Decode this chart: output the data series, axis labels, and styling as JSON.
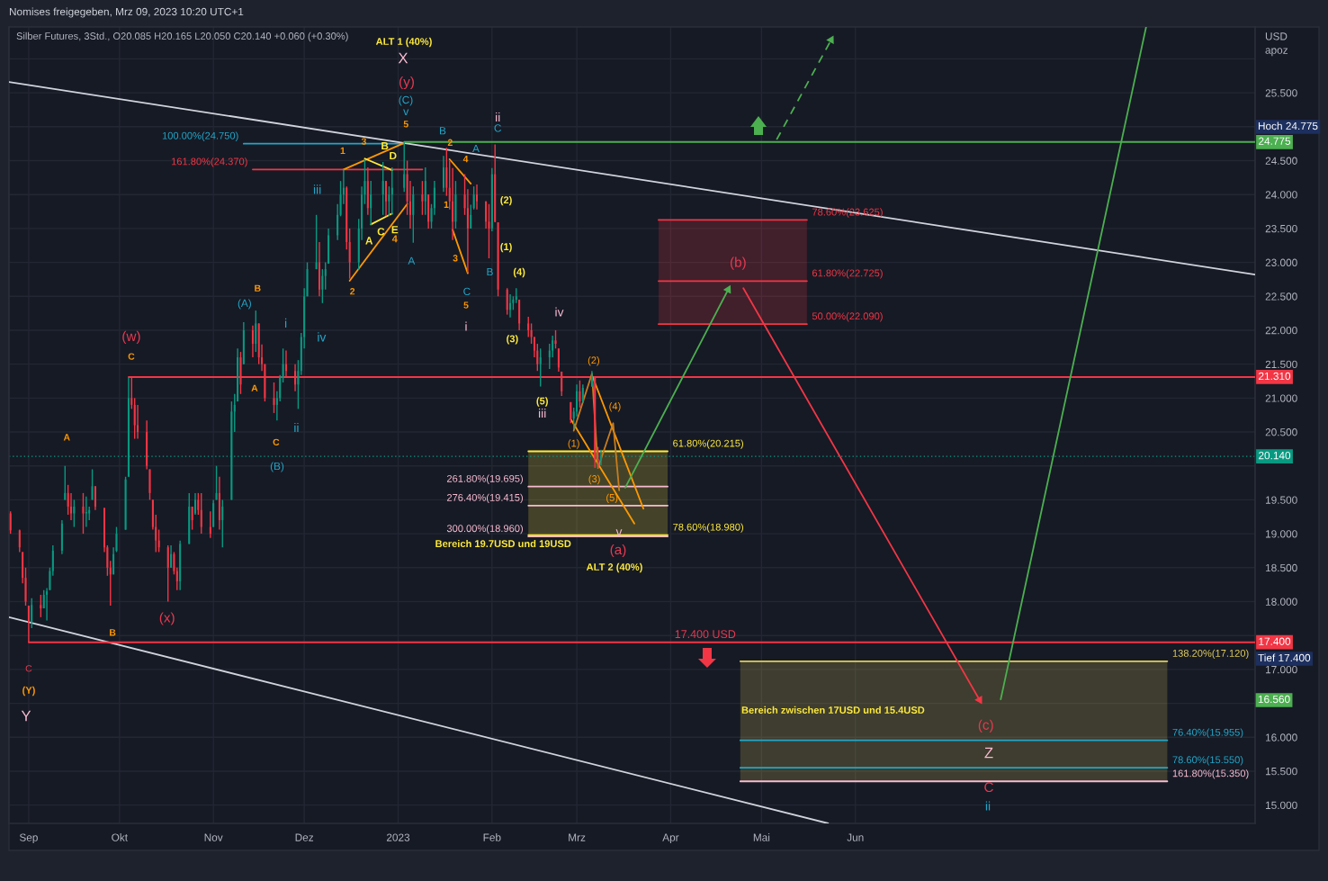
{
  "chart_data": {
    "type": "candlestick",
    "title": "Nomises freigegeben, Mrz 09, 2023 10:20 UTC+1",
    "subtitle": "Silber Futures, 3Std., O20.085 H20.165 L20.050 C20.140 +0.060 (+0.30%)",
    "ylabel": "USD\napoz",
    "x": [
      "2022-08-26",
      "2022-08-29",
      "2022-08-30",
      "2022-08-31",
      "2022-09-01",
      "2022-09-02",
      "2022-09-05",
      "2022-09-06",
      "2022-09-07",
      "2022-09-08",
      "2022-09-09",
      "2022-09-12",
      "2022-09-13",
      "2022-09-14",
      "2022-09-15",
      "2022-09-16",
      "2022-09-19",
      "2022-09-20",
      "2022-09-21",
      "2022-09-22",
      "2022-09-23",
      "2022-09-26",
      "2022-09-27",
      "2022-09-28",
      "2022-09-29",
      "2022-09-30",
      "2022-10-03",
      "2022-10-04",
      "2022-10-05",
      "2022-10-06",
      "2022-10-07",
      "2022-10-10",
      "2022-10-11",
      "2022-10-12",
      "2022-10-13",
      "2022-10-14",
      "2022-10-17",
      "2022-10-18",
      "2022-10-19",
      "2022-10-20",
      "2022-10-21",
      "2022-10-24",
      "2022-10-25",
      "2022-10-26",
      "2022-10-27",
      "2022-10-28",
      "2022-10-31",
      "2022-11-01",
      "2022-11-02",
      "2022-11-03",
      "2022-11-04",
      "2022-11-07",
      "2022-11-08",
      "2022-11-09",
      "2022-11-10",
      "2022-11-11",
      "2022-11-14",
      "2022-11-15",
      "2022-11-16",
      "2022-11-17",
      "2022-11-18",
      "2022-11-21",
      "2022-11-22",
      "2022-11-23",
      "2022-11-24",
      "2022-11-25",
      "2022-11-28",
      "2022-11-29",
      "2022-11-30",
      "2022-12-01",
      "2022-12-02",
      "2022-12-05",
      "2022-12-06",
      "2022-12-07",
      "2022-12-08",
      "2022-12-09",
      "2022-12-12",
      "2022-12-13",
      "2022-12-14",
      "2022-12-15",
      "2022-12-16",
      "2022-12-19",
      "2022-12-20",
      "2022-12-21",
      "2022-12-22",
      "2022-12-23",
      "2022-12-27",
      "2022-12-28",
      "2022-12-29",
      "2022-12-30",
      "2023-01-03",
      "2023-01-04",
      "2023-01-05",
      "2023-01-06",
      "2023-01-09",
      "2023-01-10",
      "2023-01-11",
      "2023-01-12",
      "2023-01-13",
      "2023-01-16",
      "2023-01-17",
      "2023-01-18",
      "2023-01-19",
      "2023-01-20",
      "2023-01-23",
      "2023-01-24",
      "2023-01-25",
      "2023-01-26",
      "2023-01-27",
      "2023-01-30",
      "2023-01-31",
      "2023-02-01",
      "2023-02-02",
      "2023-02-03",
      "2023-02-06",
      "2023-02-07",
      "2023-02-08",
      "2023-02-09",
      "2023-02-10",
      "2023-02-13",
      "2023-02-14",
      "2023-02-15",
      "2023-02-16",
      "2023-02-17",
      "2023-02-20",
      "2023-02-21",
      "2023-02-22",
      "2023-02-23",
      "2023-02-24",
      "2023-02-27",
      "2023-02-28",
      "2023-03-01",
      "2023-03-02",
      "2023-03-03",
      "2023-03-06",
      "2023-03-07",
      "2023-03-08",
      "2023-03-09"
    ],
    "ohlc": [
      [
        19.3,
        19.33,
        19.0,
        19.05
      ],
      [
        19.05,
        19.06,
        18.73,
        18.8
      ],
      [
        18.73,
        18.73,
        18.27,
        18.35
      ],
      [
        18.35,
        18.5,
        17.94,
        18.0
      ],
      [
        17.94,
        17.94,
        17.4,
        17.7
      ],
      [
        17.7,
        18.05,
        17.61,
        17.95
      ],
      [
        17.95,
        18.1,
        17.77,
        17.9
      ],
      [
        17.9,
        18.17,
        17.9,
        18.1
      ],
      [
        18.1,
        18.2,
        17.72,
        18.15
      ],
      [
        18.17,
        18.5,
        18.17,
        18.45
      ],
      [
        18.45,
        18.83,
        18.38,
        18.75
      ],
      [
        18.75,
        19.2,
        18.7,
        19.15
      ],
      [
        19.5,
        20.0,
        19.5,
        19.6
      ],
      [
        19.6,
        19.72,
        19.28,
        19.4
      ],
      [
        19.4,
        19.6,
        19.2,
        19.3
      ],
      [
        19.3,
        19.5,
        19.1,
        19.4
      ],
      [
        19.4,
        19.6,
        19.0,
        19.3
      ],
      [
        19.3,
        19.55,
        19.1,
        19.32
      ],
      [
        19.3,
        19.4,
        19.2,
        19.35
      ],
      [
        19.5,
        19.95,
        19.5,
        19.7
      ],
      [
        19.7,
        19.7,
        19.35,
        19.4
      ],
      [
        19.38,
        19.38,
        18.73,
        18.8
      ],
      [
        18.8,
        18.83,
        18.38,
        18.5
      ],
      [
        18.5,
        18.6,
        17.94,
        18.4
      ],
      [
        18.4,
        18.8,
        18.4,
        18.7
      ],
      [
        18.75,
        19.1,
        18.73,
        19.0
      ],
      [
        19.06,
        19.84,
        19.06,
        19.8
      ],
      [
        19.84,
        21.31,
        19.84,
        21.0
      ],
      [
        21.0,
        21.3,
        20.84,
        20.9
      ],
      [
        20.9,
        21.0,
        20.4,
        20.6
      ],
      [
        20.6,
        20.9,
        20.4,
        20.5
      ],
      [
        20.5,
        20.67,
        19.95,
        20.0
      ],
      [
        19.95,
        19.95,
        19.5,
        19.6
      ],
      [
        19.5,
        19.5,
        19.06,
        19.1
      ],
      [
        19.1,
        19.28,
        18.73,
        18.9
      ],
      [
        18.9,
        19.06,
        18.73,
        18.8
      ],
      [
        18.8,
        18.83,
        18.0,
        18.5
      ],
      [
        18.5,
        18.83,
        18.5,
        18.7
      ],
      [
        18.7,
        18.73,
        18.4,
        18.45
      ],
      [
        18.45,
        18.5,
        18.17,
        18.3
      ],
      [
        18.3,
        18.9,
        18.17,
        18.85
      ],
      [
        18.85,
        19.6,
        18.85,
        19.4
      ],
      [
        19.4,
        19.4,
        19.06,
        19.2
      ],
      [
        19.3,
        19.6,
        19.28,
        19.5
      ],
      [
        19.5,
        19.6,
        19.28,
        19.35
      ],
      [
        19.35,
        19.6,
        19.0,
        19.1
      ],
      [
        19.1,
        19.33,
        18.94,
        19.0
      ],
      [
        19.1,
        19.5,
        19.1,
        19.45
      ],
      [
        19.5,
        20.0,
        19.5,
        19.6
      ],
      [
        19.6,
        19.84,
        19.06,
        19.2
      ],
      [
        19.2,
        19.5,
        18.8,
        19.4
      ],
      [
        19.5,
        20.95,
        19.5,
        20.8
      ],
      [
        20.8,
        21.06,
        20.5,
        20.9
      ],
      [
        20.95,
        21.73,
        20.95,
        21.6
      ],
      [
        21.6,
        21.68,
        21.06,
        21.2
      ],
      [
        21.5,
        22.12,
        21.5,
        22.0
      ],
      [
        22.0,
        22.07,
        21.6,
        21.8
      ],
      [
        21.8,
        22.29,
        21.68,
        22.1
      ],
      [
        22.1,
        22.1,
        21.5,
        21.6
      ],
      [
        21.6,
        21.79,
        21.4,
        21.5
      ],
      [
        21.5,
        21.5,
        20.95,
        21.0
      ],
      [
        21.0,
        21.23,
        20.78,
        20.9
      ],
      [
        20.9,
        21.1,
        20.67,
        21.0
      ],
      [
        21.0,
        21.34,
        20.95,
        21.3
      ],
      [
        21.3,
        21.73,
        21.23,
        21.5
      ],
      [
        21.5,
        21.7,
        21.3,
        21.4
      ],
      [
        21.4,
        21.5,
        21.1,
        21.2
      ],
      [
        21.2,
        21.56,
        20.84,
        21.4
      ],
      [
        21.4,
        21.96,
        21.34,
        21.9
      ],
      [
        21.9,
        22.62,
        21.73,
        22.5
      ],
      [
        22.5,
        23.0,
        22.5,
        22.9
      ],
      [
        22.9,
        23.7,
        22.9,
        23.0
      ],
      [
        23.0,
        23.3,
        22.5,
        22.6
      ],
      [
        22.6,
        22.9,
        22.4,
        22.8
      ],
      [
        22.8,
        23.0,
        22.6,
        22.9
      ],
      [
        22.98,
        23.5,
        22.98,
        23.4
      ],
      [
        23.4,
        23.86,
        23.33,
        23.7
      ],
      [
        23.7,
        24.2,
        23.68,
        24.0
      ],
      [
        24.0,
        24.37,
        23.86,
        24.1
      ],
      [
        24.1,
        24.12,
        23.19,
        23.3
      ],
      [
        23.3,
        23.5,
        22.76,
        23.0
      ],
      [
        23.0,
        23.64,
        22.89,
        23.5
      ],
      [
        23.5,
        24.12,
        23.33,
        24.0
      ],
      [
        24.0,
        24.52,
        23.86,
        24.2
      ],
      [
        24.2,
        24.4,
        23.7,
        23.8
      ],
      [
        23.8,
        24.2,
        23.55,
        24.0
      ],
      [
        24.0,
        24.48,
        23.7,
        24.2
      ],
      [
        24.2,
        24.2,
        23.68,
        23.9
      ],
      [
        23.9,
        24.12,
        23.68,
        24.0
      ],
      [
        24.0,
        24.4,
        23.7,
        24.1
      ],
      [
        24.1,
        24.775,
        24.04,
        24.3
      ],
      [
        24.3,
        24.5,
        23.7,
        23.9
      ],
      [
        23.9,
        24.2,
        23.5,
        23.7
      ],
      [
        23.7,
        24.12,
        23.29,
        24.0
      ],
      [
        24.0,
        24.2,
        23.7,
        23.9
      ],
      [
        23.9,
        24.4,
        23.7,
        24.2
      ],
      [
        24.0,
        24.0,
        23.5,
        23.6
      ],
      [
        23.6,
        23.86,
        23.5,
        23.8
      ],
      [
        23.8,
        24.2,
        23.7,
        24.1
      ],
      [
        24.1,
        24.57,
        24.04,
        24.4
      ],
      [
        24.4,
        24.69,
        23.98,
        24.1
      ],
      [
        24.1,
        24.5,
        23.78,
        23.9
      ],
      [
        23.9,
        24.39,
        23.33,
        23.6
      ],
      [
        23.6,
        24.2,
        23.5,
        24.0
      ],
      [
        24.0,
        24.3,
        23.7,
        23.8
      ],
      [
        23.8,
        24.08,
        22.85,
        23.5
      ],
      [
        23.5,
        23.85,
        23.5,
        23.7
      ],
      [
        23.8,
        24.12,
        23.78,
        24.0
      ],
      [
        24.0,
        24.15,
        23.78,
        23.9
      ],
      [
        23.9,
        23.9,
        23.5,
        23.6
      ],
      [
        23.6,
        23.86,
        23.06,
        23.5
      ],
      [
        23.5,
        24.39,
        23.46,
        24.3
      ],
      [
        24.3,
        24.74,
        23.59,
        23.6
      ],
      [
        23.59,
        23.59,
        22.5,
        22.6
      ],
      [
        22.6,
        22.62,
        22.23,
        22.3
      ],
      [
        22.3,
        22.53,
        22.19,
        22.4
      ],
      [
        22.4,
        22.5,
        22.3,
        22.45
      ],
      [
        22.45,
        22.62,
        22.4,
        22.5
      ],
      [
        22.45,
        22.45,
        22.0,
        22.1
      ],
      [
        22.1,
        22.2,
        21.9,
        22.0
      ],
      [
        22.0,
        22.1,
        21.8,
        21.9
      ],
      [
        21.9,
        21.9,
        21.6,
        21.7
      ],
      [
        21.7,
        21.8,
        21.4,
        21.5
      ],
      [
        21.5,
        21.73,
        21.17,
        21.6
      ],
      [
        21.6,
        21.8,
        21.43,
        21.7
      ],
      [
        21.7,
        21.92,
        21.6,
        21.85
      ],
      [
        21.85,
        22.0,
        21.73,
        21.8
      ],
      [
        21.73,
        21.73,
        21.39,
        21.45
      ],
      [
        21.39,
        21.39,
        21.03,
        21.1
      ],
      [
        20.94,
        20.94,
        20.63,
        20.7
      ],
      [
        20.7,
        20.86,
        20.54,
        20.8
      ],
      [
        20.8,
        21.2,
        20.73,
        21.1
      ],
      [
        21.1,
        21.26,
        20.86,
        20.95
      ],
      [
        20.95,
        21.2,
        20.93,
        21.15
      ],
      [
        21.17,
        21.4,
        21.17,
        21.3
      ],
      [
        21.3,
        21.3,
        19.97,
        20.1
      ],
      [
        20.1,
        20.28,
        19.97,
        20.08
      ],
      [
        20.08,
        20.24,
        20.01,
        20.14
      ]
    ],
    "colors": [
      "#f23645",
      "#f23645",
      "#f23645",
      "#f23645",
      "#f23645",
      "#089981",
      "#f23645",
      "#089981",
      "#089981",
      "#089981",
      "#089981",
      "#089981",
      "#089981",
      "#f23645",
      "#f23645",
      "#089981",
      "#f23645",
      "#089981",
      "#089981",
      "#089981",
      "#f23645",
      "#f23645",
      "#f23645",
      "#f23645",
      "#089981",
      "#089981",
      "#089981",
      "#089981",
      "#f23645",
      "#f23645",
      "#f23645",
      "#f23645",
      "#f23645",
      "#f23645",
      "#f23645",
      "#f23645",
      "#f23645",
      "#089981",
      "#f23645",
      "#f23645",
      "#089981",
      "#089981",
      "#f23645",
      "#089981",
      "#f23645",
      "#f23645",
      "#f23645",
      "#089981",
      "#089981",
      "#f23645",
      "#089981",
      "#089981",
      "#089981",
      "#089981",
      "#f23645",
      "#089981",
      "#f23645",
      "#089981",
      "#f23645",
      "#f23645",
      "#f23645",
      "#f23645",
      "#089981",
      "#089981",
      "#089981",
      "#f23645",
      "#f23645",
      "#089981",
      "#089981",
      "#089981",
      "#089981",
      "#089981",
      "#f23645",
      "#089981",
      "#089981",
      "#089981",
      "#089981",
      "#089981",
      "#089981",
      "#f23645",
      "#f23645",
      "#089981",
      "#089981",
      "#089981",
      "#f23645",
      "#089981",
      "#089981",
      "#f23645",
      "#089981",
      "#089981",
      "#089981",
      "#f23645",
      "#f23645",
      "#089981",
      "#f23645",
      "#089981",
      "#f23645",
      "#089981",
      "#089981",
      "#089981",
      "#f23645",
      "#f23645",
      "#f23645",
      "#089981",
      "#f23645",
      "#f23645",
      "#089981",
      "#089981",
      "#f23645",
      "#f23645",
      "#f23645",
      "#089981",
      "#f23645",
      "#f23645",
      "#f23645",
      "#089981",
      "#089981",
      "#089981",
      "#f23645",
      "#f23645",
      "#f23645",
      "#f23645",
      "#f23645",
      "#089981",
      "#089981",
      "#089981",
      "#f23645",
      "#f23645",
      "#f23645",
      "#f23645",
      "#089981",
      "#089981",
      "#f23645",
      "#089981",
      "#089981",
      "#f23645",
      "#f23645",
      "#089981"
    ],
    "xlim": [
      "2022-08-25T12:00",
      "2023-10-11"
    ],
    "xticks": [
      {
        "value": "2022-09-01",
        "label": "Sep"
      },
      {
        "value": "2022-10-01",
        "label": "Okt"
      },
      {
        "value": "2022-11-01",
        "label": "Nov"
      },
      {
        "value": "2022-12-01",
        "label": "Dez"
      },
      {
        "value": "2023-01-01",
        "label": "2023"
      },
      {
        "value": "2023-02-01",
        "label": "Feb"
      },
      {
        "value": "2023-03-01",
        "label": "Mrz"
      },
      {
        "value": "2023-04-01",
        "label": "Apr"
      },
      {
        "value": "2023-05-01",
        "label": "Mai"
      },
      {
        "value": "2023-06-01",
        "label": "Jun"
      }
    ],
    "ylim": [
      14.73,
      26.47
    ],
    "yticks": [
      {
        "value": 15,
        "label": "15.000"
      },
      {
        "value": 15.5,
        "label": "15.500"
      },
      {
        "value": 16,
        "label": "16.000"
      },
      {
        "value": 16.5,
        "label": null
      },
      {
        "value": 17,
        "label": "17.000"
      },
      {
        "value": 17.5,
        "label": null
      },
      {
        "value": 18,
        "label": "18.000"
      },
      {
        "value": 18.5,
        "label": "18.500"
      },
      {
        "value": 19,
        "label": "19.000"
      },
      {
        "value": 19.5,
        "label": "19.500"
      },
      {
        "value": 20,
        "label": null
      },
      {
        "value": 20.5,
        "label": "20.500"
      },
      {
        "value": 21,
        "label": "21.000"
      },
      {
        "value": 21.5,
        "label": "21.500"
      },
      {
        "value": 22,
        "label": "22.000"
      },
      {
        "value": 22.5,
        "label": "22.500"
      },
      {
        "value": 23,
        "label": "23.000"
      },
      {
        "value": 23.5,
        "label": "23.500"
      },
      {
        "value": 24,
        "label": "24.000"
      },
      {
        "value": 24.5,
        "label": "24.500"
      },
      {
        "value": 25,
        "label": null
      },
      {
        "value": 25.5,
        "label": "25.500"
      },
      {
        "value": 26,
        "label": null
      }
    ],
    "grid": true,
    "series": [
      {
        "type": "line",
        "x": [
          "2023-03-28",
          "2023-05-16"
        ],
        "values": [
          23.625,
          23.625
        ],
        "lower": [
          22.09,
          22.09
        ],
        "upper": [
          23.625,
          23.625
        ],
        "color": "#f23645",
        "value_labels": [
          null,
          "78.60%(23.625)"
        ]
      },
      {
        "type": "line",
        "x": [
          "2023-03-28",
          "2023-05-16"
        ],
        "values": [
          22.725,
          22.725
        ],
        "color": "#f23645",
        "value_labels": [
          null,
          "61.80%(22.725)"
        ]
      },
      {
        "type": "line",
        "x": [
          "2023-03-28",
          "2023-05-16"
        ],
        "values": [
          22.09,
          22.09
        ],
        "color": "#f23645",
        "value_labels": [
          null,
          "50.00%(22.090)"
        ]
      },
      {
        "type": "line",
        "x": [
          "2023-02-13",
          "2023-03-31"
        ],
        "values": [
          20.215,
          20.215
        ],
        "lower": [
          18.96,
          18.96
        ],
        "upper": [
          20.215,
          20.215
        ],
        "color": "#ffeb3b",
        "value_labels": [
          null,
          "61.80%(20.215)"
        ]
      },
      {
        "type": "line",
        "x": [
          "2023-02-13",
          "2023-03-31"
        ],
        "values": [
          19.695,
          19.695
        ],
        "color": "#f8bbd0",
        "value_labels": [
          "261.80%(19.695)",
          null
        ]
      },
      {
        "type": "line",
        "x": [
          "2023-02-13",
          "2023-03-31"
        ],
        "values": [
          19.415,
          19.415
        ],
        "color": "#f8bbd0",
        "value_labels": [
          "276.40%(19.415)",
          null
        ]
      },
      {
        "type": "line",
        "x": [
          "2023-02-13",
          "2023-03-31"
        ],
        "values": [
          18.96,
          18.96
        ],
        "color": "#f8bbd0",
        "value_labels": [
          "300.00%(18.960)",
          null
        ]
      },
      {
        "type": "line",
        "x": [
          "2023-02-13",
          "2023-03-31"
        ],
        "values": [
          18.98,
          18.98
        ],
        "color": "#ffeb3b",
        "value_labels": [
          null,
          "78.60%(18.980)"
        ]
      },
      {
        "type": "line",
        "x": [
          "2023-04-24",
          "2023-09-12"
        ],
        "values": [
          17.12,
          17.12
        ],
        "lower": [
          15.35,
          15.35
        ],
        "upper": [
          17.12,
          17.12
        ],
        "color": "#e0cc5a",
        "value_labels": [
          null,
          "138.20%(17.120)"
        ]
      },
      {
        "type": "line",
        "x": [
          "2023-04-24",
          "2023-09-12"
        ],
        "values": [
          15.955,
          15.955
        ],
        "color": "#22a6c8",
        "value_labels": [
          null,
          "76.40%(15.955)"
        ]
      },
      {
        "type": "line",
        "x": [
          "2023-04-24",
          "2023-09-12"
        ],
        "values": [
          15.55,
          15.55
        ],
        "color": "#22a6c8",
        "value_labels": [
          null,
          "78.60%(15.550)"
        ]
      },
      {
        "type": "line",
        "x": [
          "2023-04-24",
          "2023-09-12"
        ],
        "values": [
          15.35,
          15.35
        ],
        "color": "#f8bbd0",
        "value_labels": [
          null,
          "161.80%(15.350)"
        ]
      },
      {
        "type": "line",
        "x": [
          "2022-11-11",
          "2023-01-03"
        ],
        "values": [
          24.75,
          24.75
        ],
        "color": "#22a6c8",
        "value_labels": [
          "100.00%(24.750)",
          null
        ]
      },
      {
        "type": "line",
        "x": [
          "2022-11-14",
          "2023-01-09"
        ],
        "values": [
          24.37,
          24.37
        ],
        "color": "#f23645",
        "value_labels": [
          "161.80%(24.370)",
          null
        ]
      },
      {
        "type": "line",
        "x": [
          "2022-08-25T12:00",
          "2023-10-11"
        ],
        "values": [
          25.66,
          22.82
        ],
        "color": "#d1d4dc"
      },
      {
        "type": "line",
        "x": [
          "2022-08-25T12:00",
          "2023-05-23"
        ],
        "values": [
          17.77,
          14.73
        ],
        "color": "#d1d4dc"
      },
      {
        "type": "line",
        "x": [
          "2023-01-03",
          "2023-10-11"
        ],
        "values": [
          24.775,
          24.775
        ],
        "color": "#4caf50",
        "value_labels": [
          null,
          "24.775"
        ]
      },
      {
        "type": "line",
        "x": [
          "2022-10-04",
          "2023-10-11"
        ],
        "values": [
          21.31,
          21.31
        ],
        "color": "#f23645",
        "value_labels": [
          null,
          "21.310"
        ]
      },
      {
        "type": "line",
        "x": [
          "2022-09-01",
          "2023-10-11"
        ],
        "values": [
          17.4,
          17.4
        ],
        "color": "#f23645",
        "value_labels": [
          null,
          "17.400"
        ]
      },
      {
        "type": "line",
        "x": [
          "2022-12-14",
          "2023-01-03"
        ],
        "values": [
          24.37,
          24.76
        ],
        "color": "#ff9800"
      },
      {
        "type": "line",
        "x": [
          "2022-12-16",
          "2023-01-04"
        ],
        "values": [
          22.73,
          23.86
        ],
        "color": "#ff9800"
      },
      {
        "type": "line",
        "x": [
          "2022-12-21",
          "2022-12-30"
        ],
        "values": [
          24.53,
          24.36
        ],
        "color": "#ffeb3b"
      },
      {
        "type": "line",
        "x": [
          "2022-12-23",
          "2022-12-30"
        ],
        "values": [
          23.56,
          23.72
        ],
        "color": "#ffeb3b"
      },
      {
        "type": "line",
        "x": [
          "2023-01-18",
          "2023-01-25"
        ],
        "values": [
          24.52,
          24.16
        ],
        "color": "#ff9800"
      },
      {
        "type": "line",
        "x": [
          "2023-01-19",
          "2023-01-24"
        ],
        "values": [
          23.48,
          22.84
        ],
        "color": "#ff9800"
      },
      {
        "type": "line",
        "x": [
          "2023-02-27",
          "2023-03-20"
        ],
        "values": [
          20.69,
          19.15
        ],
        "color": "#ff9800"
      },
      {
        "type": "line",
        "x": [
          "2023-03-06",
          "2023-03-23"
        ],
        "values": [
          21.34,
          19.37
        ],
        "color": "#ff9800"
      },
      {
        "type": "line",
        "x": [
          "2023-02-28",
          "2023-03-06",
          "2023-03-08",
          "2023-03-13",
          "2023-03-15"
        ],
        "values": [
          20.52,
          21.36,
          19.97,
          20.63,
          19.64
        ],
        "color": "#c77d1e"
      },
      {
        "type": "line",
        "x": [
          "2023-03-17",
          "2023-04-20"
        ],
        "values": [
          19.68,
          22.6
        ],
        "color": "#4caf50",
        "marker": "triangle"
      },
      {
        "type": "line",
        "x": [
          "2023-04-25",
          "2023-07-12"
        ],
        "values": [
          22.62,
          16.55
        ],
        "color": "#f23645",
        "marker": "triangle"
      },
      {
        "type": "line",
        "x": [
          "2023-07-19",
          "2023-09-05"
        ],
        "values": [
          16.56,
          26.47
        ],
        "color": "#4caf50"
      },
      {
        "type": "line",
        "x": [
          "2023-05-06",
          "2023-05-24"
        ],
        "values": [
          24.81,
          26.28
        ],
        "color": "#4caf50",
        "line_style": "dashed",
        "marker": "triangle"
      }
    ],
    "ref_lines": [
      {
        "axis": "y",
        "value": 20.14,
        "label": "20.140",
        "color": "#089981",
        "line_style": "dotted"
      }
    ],
    "annotations": [
      "ALT 1 (40%)",
      "X",
      "(y)",
      "(C)",
      {
        "text": "v",
        "x": "2023-01-03",
        "y": 24.775
      },
      {
        "text": "5",
        "x": "2023-01-03",
        "y": 24.775
      },
      {
        "text": "A",
        "x": "2022-09-13",
        "y": 20.0
      },
      {
        "text": "C",
        "x": "2022-10-04",
        "y": 21.31
      },
      {
        "text": "(w)",
        "x": "2022-10-04",
        "y": 21.31
      },
      {
        "text": "B",
        "x": "2022-09-29",
        "y": 17.4
      },
      {
        "text": "B",
        "x": "2022-11-15",
        "y": 22.29
      },
      {
        "text": "A",
        "x": "2022-11-14",
        "y": 21.6
      },
      {
        "text": "C",
        "x": "2022-11-22",
        "y": 20.67
      },
      "(B)",
      {
        "text": "1",
        "x": "2022-12-14",
        "y": 24.37
      },
      {
        "text": "3",
        "x": "2022-12-21",
        "y": 24.52
      },
      {
        "text": "2",
        "x": "2022-12-16",
        "y": 22.76
      },
      {
        "text": "E",
        "x": "2022-12-30",
        "y": 23.72
      },
      {
        "text": "4",
        "x": "2022-12-30",
        "y": 23.72
      },
      {
        "text": "C",
        "x": "2022-12-29",
        "y": 23.68
      },
      {
        "text": "A",
        "x": "2022-12-23",
        "y": 23.56
      },
      {
        "text": "B",
        "x": "2022-12-27",
        "y": 24.48
      },
      {
        "text": "D",
        "x": "2022-12-30",
        "y": 24.4
      },
      {
        "text": "2",
        "x": "2023-01-17",
        "y": 24.69
      },
      {
        "text": "4",
        "x": "2023-01-23",
        "y": 24.3
      },
      {
        "text": "1",
        "x": "2023-01-16",
        "y": 24.04
      },
      {
        "text": "B",
        "x": "2023-01-16",
        "y": 24.57
      },
      {
        "text": "3",
        "x": "2023-01-19",
        "y": 23.33
      },
      {
        "text": "C",
        "x": "2023-01-24",
        "y": 22.85
      },
      "5",
      "i",
      {
        "text": "C",
        "x": "2022-09-01",
        "y": 17.4
      },
      "(Y)",
      "Y",
      {
        "text": "(1)",
        "x": "2023-02-28",
        "y": 20.52
      },
      {
        "text": "(2)",
        "x": "2023-03-06",
        "y": 21.36
      },
      {
        "text": "(3)",
        "x": "2023-03-08",
        "y": 19.97
      },
      {
        "text": "(4)",
        "x": "2023-03-13",
        "y": 20.63
      },
      {
        "text": "(5)",
        "x": "2023-03-15",
        "y": 19.64
      },
      "v",
      "(a)",
      "ALT 2 (40%)",
      {
        "text": "(x)",
        "x": "2022-10-17",
        "y": 18.0
      },
      {
        "text": "(b)",
        "x": "2023-04-20",
        "y": 22.6
      },
      {
        "text": "(c)",
        "x": "2023-07-12",
        "y": 16.55
      },
      "Z",
      "C",
      "ii",
      {
        "text": "17.400 USD",
        "x": "2023-04-13",
        "y": 17.4
      },
      "A",
      {
        "text": "C",
        "x": "2023-02-02",
        "y": 24.74
      },
      {
        "text": "ii",
        "x": "2023-02-02",
        "y": 24.74
      },
      {
        "text": "A",
        "x": "2023-01-06",
        "y": 23.29
      },
      {
        "text": "B",
        "x": "2023-01-31",
        "y": 23.06
      },
      {
        "text": "iii",
        "x": "2022-12-05",
        "y": 23.7
      },
      {
        "text": "(A)",
        "x": "2022-11-11",
        "y": 22.12
      },
      {
        "text": "i",
        "x": "2022-11-24",
        "y": 21.73
      },
      {
        "text": "iv",
        "x": "2022-12-07",
        "y": 22.4
      },
      {
        "text": "ii",
        "x": "2022-11-29",
        "y": 20.84
      },
      {
        "text": "iv",
        "x": "2023-02-22",
        "y": 22.0
      },
      {
        "text": "iii",
        "x": "2023-02-17",
        "y": 21.17
      },
      {
        "text": "(5)",
        "x": "2023-02-17",
        "y": 21.17
      },
      {
        "text": "(2)",
        "x": "2023-02-03",
        "y": 23.59
      },
      {
        "text": "(1)",
        "x": "2023-02-03",
        "y": 23.59
      },
      {
        "text": "(4)",
        "x": "2023-02-10",
        "y": 22.45
      },
      {
        "text": "(3)",
        "x": "2023-02-08",
        "y": 22.3
      },
      {
        "text": "Bereich 19.7USD und 19USD",
        "x": "2023-02-13",
        "y": 18.96
      },
      "Bereich zwischen 17USD und 15.4USD",
      "Hoch 24.775",
      "Tief 17.400",
      "16.560"
    ]
  }
}
